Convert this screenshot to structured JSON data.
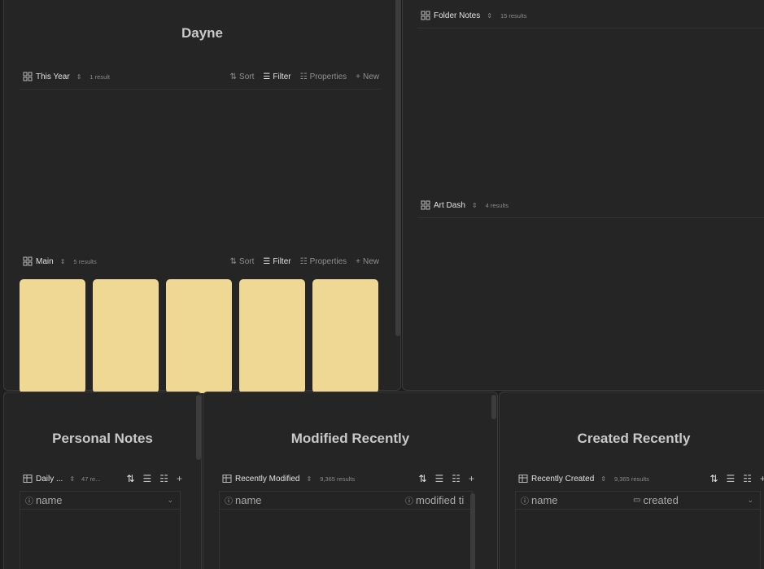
{
  "top_left": {
    "title": "Dayne",
    "view1": {
      "name": "This Year",
      "count": "1 result"
    },
    "view2": {
      "name": "Main",
      "count": "5 results"
    },
    "tools": {
      "sort": "Sort",
      "filter": "Filter",
      "properties": "Properties",
      "new": "New"
    }
  },
  "top_right": {
    "view1": {
      "name": "Folder Notes",
      "count": "15 results"
    },
    "view2": {
      "name": "Art Dash",
      "count": "4 results"
    }
  },
  "personal": {
    "title": "Personal Notes",
    "view": {
      "name": "Daily ...",
      "count": "47 re..."
    },
    "col1": "name"
  },
  "modified": {
    "title": "Modified Recently",
    "view": {
      "name": "Recently Modified",
      "count": "9,365 results"
    },
    "col1": "name",
    "col2": "modified ti"
  },
  "created": {
    "title": "Created Recently",
    "view": {
      "name": "Recently Created",
      "count": "9,365 results"
    },
    "col1": "name",
    "col2": "created"
  },
  "colors": {
    "card": "#efd894",
    "background": "#252525"
  }
}
